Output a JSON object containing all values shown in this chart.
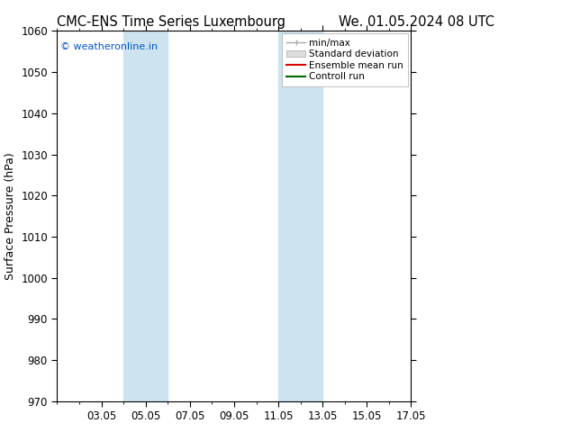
{
  "title_left": "CMC-ENS Time Series Luxembourg",
  "title_right": "We. 01.05.2024 08 UTC",
  "ylabel": "Surface Pressure (hPa)",
  "ylim": [
    970,
    1060
  ],
  "yticks": [
    970,
    980,
    990,
    1000,
    1010,
    1020,
    1030,
    1040,
    1050,
    1060
  ],
  "xlim_days": [
    1.0,
    17.0
  ],
  "xtick_positions": [
    3,
    5,
    7,
    9,
    11,
    13,
    15,
    17
  ],
  "xtick_labels": [
    "03.05",
    "05.05",
    "07.05",
    "09.05",
    "11.05",
    "13.05",
    "15.05",
    "17.05"
  ],
  "shaded_bands": [
    {
      "xmin": 4.0,
      "xmax": 6.0,
      "color": "#cde3f0",
      "alpha": 1.0
    },
    {
      "xmin": 11.0,
      "xmax": 13.0,
      "color": "#cde3f0",
      "alpha": 1.0
    }
  ],
  "watermark_text": "© weatheronline.in",
  "watermark_color": "#0055cc",
  "legend_entries": [
    {
      "label": "min/max",
      "type": "line_capped",
      "color": "#aaaaaa",
      "lw": 1.0
    },
    {
      "label": "Standard deviation",
      "type": "patch",
      "facecolor": "#dddddd",
      "edgecolor": "#aaaaaa"
    },
    {
      "label": "Ensemble mean run",
      "type": "line",
      "color": "#dd0000",
      "lw": 1.5
    },
    {
      "label": "Controll run",
      "type": "line",
      "color": "#006600",
      "lw": 1.5
    }
  ],
  "bg_color": "#ffffff",
  "plot_bg_color": "#ffffff",
  "tick_fontsize": 8.5,
  "label_fontsize": 9,
  "title_fontsize": 10.5
}
